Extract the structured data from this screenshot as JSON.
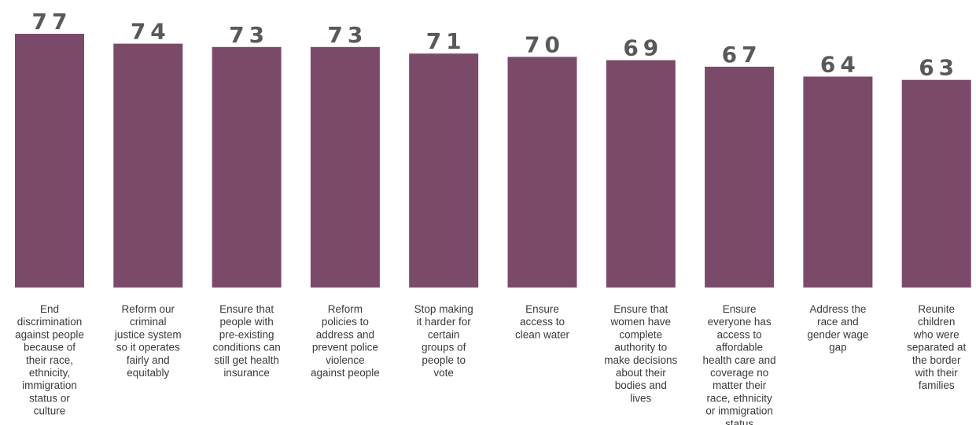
{
  "chart_data": {
    "type": "bar",
    "categories": [
      [
        "End",
        "discrimination",
        "against people",
        "because of",
        "their race,",
        "ethnicity,",
        "immigration",
        "status or",
        "culture"
      ],
      [
        "Reform our",
        "criminal",
        "justice system",
        "so it operates",
        "fairly and",
        "equitably"
      ],
      [
        "Ensure that",
        "people with",
        "pre-existing",
        "conditions can",
        "still get health",
        "insurance"
      ],
      [
        "Reform",
        "policies to",
        "address and",
        "prevent police",
        "violence",
        "against people"
      ],
      [
        "Stop making",
        "it harder for",
        "certain",
        "groups of",
        "people to",
        "vote"
      ],
      [
        "Ensure",
        "access to",
        "clean water"
      ],
      [
        "Ensure that",
        "women have",
        "complete",
        "authority to",
        "make decisions",
        "about their",
        "bodies and",
        "lives"
      ],
      [
        "Ensure",
        "everyone has",
        "access to",
        "affordable",
        "health care and",
        "coverage no",
        "matter their",
        "race, ethnicity",
        "or immigration",
        "status"
      ],
      [
        "Address the",
        "race and",
        "gender wage",
        "gap"
      ],
      [
        "Reunite",
        "children",
        "who were",
        "separated at",
        "the border",
        "with their",
        "families"
      ]
    ],
    "values": [
      77,
      74,
      73,
      73,
      71,
      70,
      69,
      67,
      64,
      63
    ],
    "title": "",
    "xlabel": "",
    "ylabel": "",
    "ylim": [
      0,
      77
    ],
    "grid": false,
    "bar_color": "#7b4a69",
    "value_label_color": "#58595b",
    "category_label_color": "#3a3a3a"
  }
}
